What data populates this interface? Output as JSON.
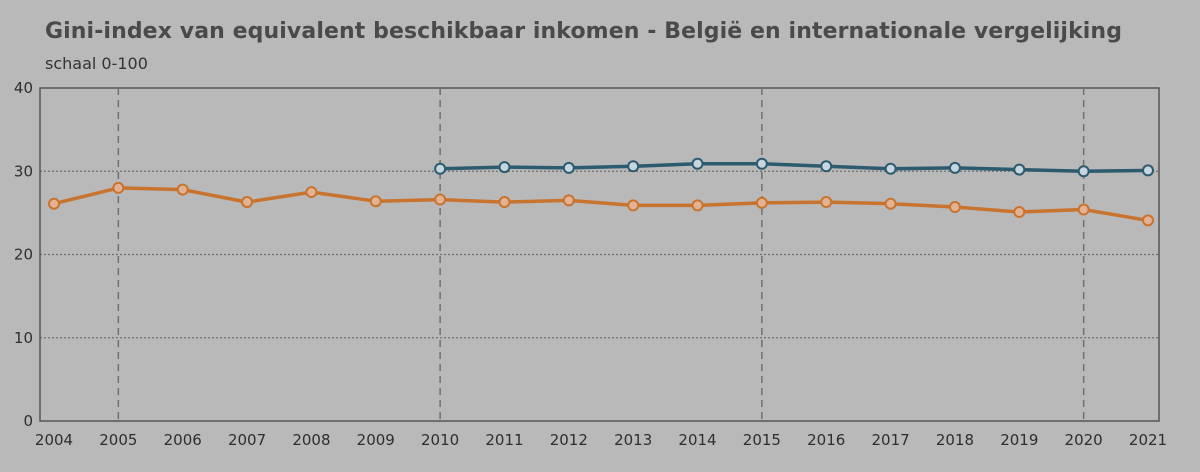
{
  "title": "Gini-index van equivalent beschikbaar inkomen - België en internationale vergelijking",
  "subtitle": "schaal 0-100",
  "colors": {
    "background": "#b9b9b9",
    "series_orange": "#c8732e",
    "series_blue": "#2c5a6e",
    "marker_fill_orange": "#e3b292",
    "marker_fill_blue": "#c7d6de",
    "axis": "#555555",
    "grid": "#6f6f6f"
  },
  "chart_data": {
    "type": "line",
    "title": "Gini-index van equivalent beschikbaar inkomen - België en internationale vergelijking",
    "subtitle": "schaal 0-100",
    "xlabel": "",
    "ylabel": "",
    "x": [
      "2004",
      "2005",
      "2006",
      "2007",
      "2008",
      "2009",
      "2010",
      "2011",
      "2012",
      "2013",
      "2014",
      "2015",
      "2016",
      "2017",
      "2018",
      "2019",
      "2020",
      "2021"
    ],
    "ylim": [
      0,
      40
    ],
    "yticks": [
      0,
      10,
      20,
      30,
      40
    ],
    "grid": true,
    "vertical_markers": [
      "2005",
      "2010",
      "2015",
      "2020"
    ],
    "series": [
      {
        "color": "#c8732e",
        "values": [
          26.1,
          28.0,
          27.8,
          26.3,
          27.5,
          26.4,
          26.6,
          26.3,
          26.5,
          25.9,
          25.9,
          26.2,
          26.3,
          26.1,
          25.7,
          25.1,
          25.4,
          24.1
        ]
      },
      {
        "color": "#2c5a6e",
        "values": [
          null,
          null,
          null,
          null,
          null,
          null,
          30.3,
          30.5,
          30.4,
          30.6,
          30.9,
          30.9,
          30.6,
          30.3,
          30.4,
          30.2,
          30.0,
          30.1
        ]
      }
    ]
  }
}
